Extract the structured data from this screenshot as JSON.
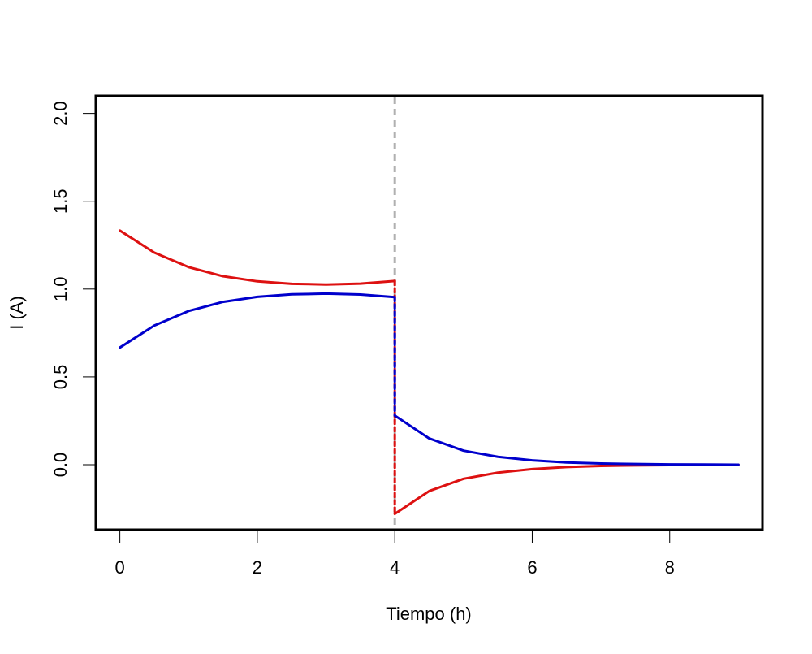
{
  "chart_data": {
    "type": "line",
    "title": "",
    "xlabel": "Tiempo (h)",
    "ylabel": "I (A)",
    "xlim": [
      -0.35,
      9.35
    ],
    "ylim": [
      -0.37,
      2.1
    ],
    "x_ticks": [
      0,
      2,
      4,
      6,
      8
    ],
    "x_tick_labels": [
      "0",
      "2",
      "4",
      "6",
      "8"
    ],
    "y_ticks": [
      0.0,
      0.5,
      1.0,
      1.5,
      2.0
    ],
    "y_tick_labels": [
      "0.0",
      "0.5",
      "1.0",
      "1.5",
      "2.0"
    ],
    "grid": false,
    "legend": "none",
    "vertical_reference_line": {
      "x": 4,
      "style": "dashed",
      "color": "#b0b0b0"
    },
    "series": [
      {
        "color": "#dd1111",
        "segments": [
          {
            "x": [
              0,
              0.5,
              1,
              1.5,
              2,
              2.5,
              3,
              3.5,
              4
            ],
            "y": [
              1.333,
              1.208,
              1.125,
              1.073,
              1.044,
              1.03,
              1.026,
              1.031,
              1.046
            ]
          },
          {
            "x": [
              4,
              4
            ],
            "y": [
              1.046,
              -0.28
            ],
            "dashed": true
          },
          {
            "x": [
              4,
              4.5,
              5,
              5.5,
              6,
              6.5,
              7,
              7.5,
              8,
              8.5,
              9
            ],
            "y": [
              -0.28,
              -0.15,
              -0.08,
              -0.045,
              -0.025,
              -0.013,
              -0.007,
              -0.004,
              -0.002,
              -0.001,
              0.0
            ]
          }
        ]
      },
      {
        "color": "#0000cc",
        "segments": [
          {
            "x": [
              0,
              0.5,
              1,
              1.5,
              2,
              2.5,
              3,
              3.5,
              4
            ],
            "y": [
              0.667,
              0.792,
              0.875,
              0.927,
              0.956,
              0.97,
              0.974,
              0.969,
              0.954
            ]
          },
          {
            "x": [
              4,
              4
            ],
            "y": [
              0.954,
              0.28
            ],
            "dashed": true
          },
          {
            "x": [
              4,
              4.5,
              5,
              5.5,
              6,
              6.5,
              7,
              7.5,
              8,
              8.5,
              9
            ],
            "y": [
              0.28,
              0.15,
              0.08,
              0.045,
              0.025,
              0.013,
              0.007,
              0.004,
              0.002,
              0.001,
              0.0
            ]
          }
        ]
      }
    ]
  }
}
